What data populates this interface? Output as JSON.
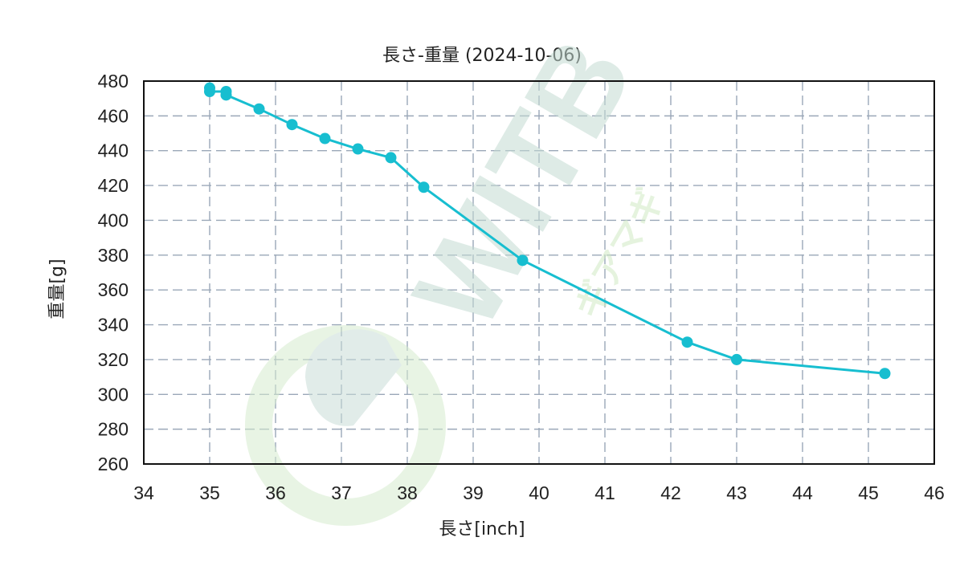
{
  "chart_data": {
    "type": "line",
    "title": "長さ-重量  (2024-10-06)",
    "xlabel": "長さ[inch]",
    "ylabel": "重量[g]",
    "xlim": [
      34,
      46
    ],
    "ylim": [
      260,
      480
    ],
    "xticks": [
      "34",
      "35",
      "36",
      "37",
      "38",
      "39",
      "40",
      "41",
      "42",
      "43",
      "44",
      "45",
      "46"
    ],
    "yticks": [
      "260",
      "280",
      "300",
      "320",
      "340",
      "360",
      "380",
      "400",
      "420",
      "440",
      "460",
      "480"
    ],
    "grid": true,
    "series": [
      {
        "color": "#17bed0",
        "points": [
          [
            35.0,
            476
          ],
          [
            35.0,
            474
          ],
          [
            35.25,
            474
          ],
          [
            35.25,
            472
          ],
          [
            35.75,
            464
          ],
          [
            36.25,
            455
          ],
          [
            36.75,
            447
          ],
          [
            37.25,
            441
          ],
          [
            37.75,
            436
          ],
          [
            38.25,
            419
          ],
          [
            39.75,
            377
          ],
          [
            42.25,
            330
          ],
          [
            43.0,
            320
          ],
          [
            45.25,
            312
          ]
        ]
      }
    ]
  },
  "watermark": {
    "brand": "WITB",
    "sub": "ギアマギ"
  }
}
